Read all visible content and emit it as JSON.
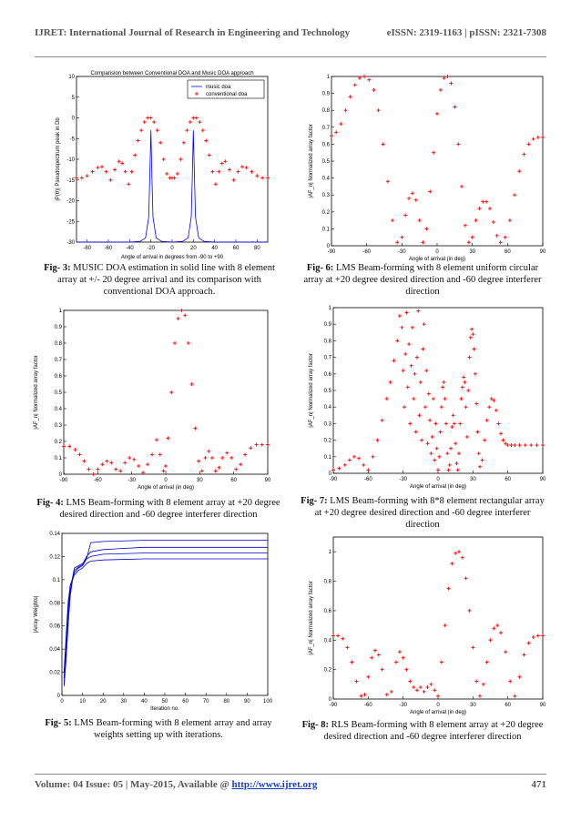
{
  "header": {
    "journal": "IJRET: International Journal of Research in Engineering and Technology",
    "issn": "eISSN: 2319-1163 | pISSN: 2321-7308"
  },
  "footer": {
    "volume_prefix": "Volume: 04 Issue: 05 | May-2015, Available @ ",
    "url": "http://www.ijret.org",
    "page": "471"
  },
  "captions": {
    "fig3": {
      "label": "Fig- 3:",
      "text": " MUSIC DOA estimation in solid line with 8 element array at +/- 20 degree arrival and its comparison with conventional DOA approach."
    },
    "fig4": {
      "label": "Fig- 4:",
      "text": " LMS Beam-forming with 8 element array at +20 degree desired direction and -60 degree interferer direction"
    },
    "fig5": {
      "label": "Fig- 5:",
      "text": " LMS Beam-forming with 8 element array and array weights setting up with iterations."
    },
    "fig6": {
      "label": "Fig- 6:",
      "text": " LMS Beam-forming with 8 element uniform circular array at +20 degree desired direction and -60 degree interferer direction"
    },
    "fig7": {
      "label": "Fig- 7:",
      "text": " LMS Beam-forming with 8*8 element rectangular array at +20 degree desired direction and -60 degree interferer direction"
    },
    "fig8": {
      "label": "Fig- 8:",
      "text": " RLS Beam-forming with 8 element array at +20 degree desired direction and -60 degree interferer direction"
    }
  },
  "chart_data": [
    {
      "id": "fig3",
      "type": "line",
      "title": "Comparision between Conventional DOA and Music DOA approach",
      "xlabel": "Angle of arrival in degrees from -90 to +90",
      "ylabel": "|P(θ)| Pseudospectrum peak in Db",
      "xlim": [
        -90,
        90
      ],
      "ylim": [
        -30,
        10
      ],
      "xticks": [
        -80,
        -60,
        -40,
        -20,
        0,
        20,
        40,
        60,
        80
      ],
      "yticks": [
        -30,
        -25,
        -20,
        -15,
        -10,
        -5,
        0,
        5,
        10
      ],
      "legend": [
        "music doa",
        "conventional doa"
      ],
      "legend_position": "top-right",
      "series": [
        {
          "name": "music doa",
          "style": "line",
          "color": "#0000ff",
          "x": [
            -90,
            -60,
            -40,
            -30,
            -25,
            -22,
            -21,
            -20,
            -19,
            -18,
            -15,
            -10,
            0,
            10,
            15,
            18,
            19,
            20,
            21,
            22,
            25,
            30,
            40,
            60,
            90
          ],
          "y": [
            -30,
            -30,
            -30,
            -29.8,
            -29,
            -24,
            -14,
            -3,
            -14,
            -24,
            -29,
            -29.8,
            -30,
            -29.8,
            -29,
            -24,
            -14,
            -3,
            -14,
            -24,
            -29,
            -29.8,
            -30,
            -30,
            -30
          ]
        },
        {
          "name": "conventional doa",
          "style": "markers",
          "color": "#ff0000",
          "x": [
            -90,
            -85,
            -80,
            -75,
            -70,
            -66,
            -62,
            -58,
            -54,
            -50,
            -47,
            -44,
            -41,
            -38,
            -35,
            -32,
            -29,
            -26,
            -23,
            -20,
            -17,
            -14,
            -11,
            -8,
            -5,
            -2,
            0,
            2,
            5,
            8,
            11,
            14,
            17,
            20,
            23,
            26,
            29,
            32,
            35,
            38,
            41,
            44,
            47,
            50,
            54,
            58,
            62,
            66,
            70,
            75,
            80,
            85,
            90
          ],
          "y": [
            -14.5,
            -14.5,
            -14,
            -13,
            -12,
            -11.8,
            -13,
            -15,
            -12.5,
            -10.5,
            -11,
            -13,
            -16,
            -13,
            -9,
            -5.5,
            -3,
            -1,
            0,
            0,
            -1,
            -3,
            -6,
            -10,
            -13.5,
            -14.5,
            -14.5,
            -14.5,
            -13.5,
            -10,
            -6,
            -3,
            -1,
            0,
            0,
            -1,
            -3,
            -5.5,
            -9,
            -13,
            -16,
            -13,
            -11,
            -10.5,
            -12.5,
            -15,
            -13,
            -11.8,
            -12,
            -13,
            -14,
            -14.5,
            -14.5
          ]
        }
      ]
    },
    {
      "id": "fig4",
      "type": "scatter",
      "xlabel": "Angle of arrival  (in deg)",
      "ylabel": "|AF_n| Normalized array factor",
      "xlim": [
        -90,
        90
      ],
      "ylim": [
        0,
        1
      ],
      "xticks": [
        -90,
        -60,
        -30,
        0,
        30,
        60,
        90
      ],
      "yticks": [
        0,
        0.1,
        0.2,
        0.3,
        0.4,
        0.5,
        0.6,
        0.7,
        0.8,
        0.9,
        1
      ],
      "series": [
        {
          "name": "",
          "color": "#ff0000",
          "x": [
            -90,
            -85,
            -80,
            -76,
            -72,
            -68,
            -64,
            -60,
            -56,
            -52,
            -48,
            -44,
            -40,
            -36,
            -32,
            -28,
            -24,
            -20,
            -16,
            -12,
            -8,
            -5,
            -2,
            0,
            2,
            5,
            8,
            11,
            14,
            17,
            20,
            23,
            26,
            29,
            32,
            35,
            38,
            41,
            44,
            47,
            50,
            54,
            58,
            62,
            66,
            70,
            75,
            80,
            85,
            90
          ],
          "y": [
            0.17,
            0.17,
            0.15,
            0.12,
            0.08,
            0.03,
            0,
            0.03,
            0.06,
            0.08,
            0.07,
            0.03,
            0.02,
            0.07,
            0.1,
            0.09,
            0.05,
            0.01,
            0.06,
            0.12,
            0.21,
            0.12,
            0.02,
            0.05,
            0.22,
            0.5,
            0.8,
            0.95,
            1.0,
            0.97,
            0.8,
            0.55,
            0.28,
            0.08,
            0.02,
            0.1,
            0.14,
            0.1,
            0.02,
            0.04,
            0.1,
            0.13,
            0.1,
            0.03,
            0.06,
            0.12,
            0.16,
            0.18,
            0.18,
            0.18
          ]
        }
      ]
    },
    {
      "id": "fig5",
      "type": "line",
      "xlabel": "Iteration no.",
      "ylabel": "|Array Weights|",
      "xlim": [
        0,
        100
      ],
      "ylim": [
        0,
        0.14
      ],
      "xticks": [
        0,
        10,
        20,
        30,
        40,
        50,
        60,
        70,
        80,
        90,
        100
      ],
      "yticks": [
        0,
        0.02,
        0.04,
        0.06,
        0.08,
        0.1,
        0.12,
        0.14
      ],
      "series": [
        {
          "name": "",
          "color": "#0000cc",
          "x": [
            1,
            2,
            3,
            4,
            5,
            6,
            8,
            10,
            12,
            14,
            20,
            40,
            70,
            100
          ],
          "y": [
            0.01,
            0.04,
            0.07,
            0.09,
            0.1,
            0.11,
            0.112,
            0.114,
            0.118,
            0.132,
            0.133,
            0.134,
            0.134,
            0.134
          ]
        },
        {
          "name": "",
          "color": "#0000cc",
          "x": [
            1,
            2,
            3,
            4,
            5,
            6,
            8,
            10,
            12,
            14,
            20,
            40,
            70,
            100
          ],
          "y": [
            0.02,
            0.05,
            0.08,
            0.095,
            0.1,
            0.108,
            0.111,
            0.113,
            0.12,
            0.124,
            0.126,
            0.128,
            0.128,
            0.128
          ]
        },
        {
          "name": "",
          "color": "#0000cc",
          "x": [
            1,
            2,
            3,
            4,
            5,
            6,
            8,
            10,
            12,
            14,
            20,
            40,
            70,
            100
          ],
          "y": [
            0.008,
            0.03,
            0.06,
            0.085,
            0.098,
            0.106,
            0.11,
            0.112,
            0.118,
            0.12,
            0.122,
            0.123,
            0.123,
            0.123
          ]
        },
        {
          "name": "",
          "color": "#0000cc",
          "x": [
            1,
            2,
            3,
            4,
            5,
            6,
            8,
            10,
            12,
            14,
            20,
            40,
            70,
            100
          ],
          "y": [
            0.015,
            0.045,
            0.075,
            0.09,
            0.1,
            0.104,
            0.108,
            0.11,
            0.114,
            0.116,
            0.117,
            0.118,
            0.118,
            0.118
          ]
        }
      ]
    },
    {
      "id": "fig6",
      "type": "scatter",
      "xlabel": "Angle of arrival  (in deg)",
      "ylabel": "|AF_n| Normalized array factor",
      "xlim": [
        -90,
        90
      ],
      "ylim": [
        0,
        1
      ],
      "xticks": [
        -90,
        -60,
        -30,
        0,
        30,
        60,
        90
      ],
      "yticks": [
        0,
        0.1,
        0.2,
        0.3,
        0.4,
        0.5,
        0.6,
        0.7,
        0.8,
        0.9,
        1
      ],
      "series": [
        {
          "name": "",
          "color": "#ff0000",
          "x": [
            -90,
            -86,
            -82,
            -78,
            -74,
            -70,
            -66,
            -62,
            -58,
            -54,
            -50,
            -46,
            -42,
            -38,
            -34,
            -30,
            -27,
            -24,
            -21,
            -18,
            -15,
            -12,
            -9,
            -6,
            -3,
            0,
            3,
            6,
            9,
            12,
            15,
            18,
            21,
            24,
            27,
            30,
            33,
            36,
            39,
            42,
            45,
            48,
            51,
            54,
            58,
            62,
            66,
            70,
            74,
            78,
            82,
            86,
            90
          ],
          "y": [
            0.65,
            0.67,
            0.72,
            0.8,
            0.88,
            0.95,
            0.99,
            1.0,
            0.98,
            0.92,
            0.8,
            0.6,
            0.38,
            0.15,
            0.02,
            0.05,
            0.18,
            0.28,
            0.31,
            0.27,
            0.15,
            0.02,
            0.1,
            0.32,
            0.55,
            0.78,
            0.92,
            0.99,
            1.0,
            0.96,
            0.82,
            0.6,
            0.35,
            0.12,
            0.02,
            0.05,
            0.15,
            0.22,
            0.26,
            0.26,
            0.22,
            0.14,
            0.06,
            0.02,
            0.05,
            0.15,
            0.3,
            0.44,
            0.54,
            0.6,
            0.63,
            0.64,
            0.64
          ]
        }
      ]
    },
    {
      "id": "fig7",
      "type": "scatter",
      "xlabel": "Angle of arrival  (in deg)",
      "ylabel": "|AF_n| Normalized array factor",
      "xlim": [
        -90,
        90
      ],
      "ylim": [
        0,
        1
      ],
      "xticks": [
        -90,
        -60,
        -30,
        0,
        30,
        60,
        90
      ],
      "yticks": [
        0,
        0.1,
        0.2,
        0.3,
        0.4,
        0.5,
        0.6,
        0.7,
        0.8,
        0.9,
        1
      ],
      "series": [
        {
          "name": "",
          "color": "#ff0000",
          "x": [
            -90,
            -85,
            -80,
            -76,
            -72,
            -68,
            -64,
            -60,
            -56,
            -52,
            -48,
            -44,
            -41,
            -38,
            -35,
            -33,
            -31,
            -30,
            -29,
            -28,
            -27,
            -26,
            -25,
            -24,
            -23,
            -22,
            -21,
            -20,
            -19,
            -18,
            -17,
            -16,
            -15,
            -14,
            -13,
            -12,
            -11,
            -10,
            -9,
            -8,
            -7,
            -6,
            -5,
            -4,
            -3,
            -2,
            -1,
            0,
            1,
            2,
            3,
            4,
            5,
            6,
            7,
            8,
            9,
            10,
            11,
            12,
            13,
            14,
            15,
            16,
            17,
            18,
            19,
            20,
            21,
            22,
            23,
            24,
            25,
            26,
            27,
            28,
            29,
            30,
            31,
            32,
            33,
            34,
            35,
            36,
            38,
            40,
            42,
            44,
            46,
            48,
            50,
            52,
            54,
            56,
            58,
            60,
            63,
            66,
            70,
            75,
            80,
            85,
            90
          ],
          "y": [
            0.02,
            0.03,
            0.05,
            0.08,
            0.1,
            0.09,
            0.05,
            0.02,
            0.1,
            0.2,
            0.32,
            0.45,
            0.55,
            0.68,
            0.8,
            0.95,
            0.88,
            0.62,
            0.4,
            0.72,
            0.97,
            0.52,
            0.78,
            0.3,
            0.65,
            0.88,
            0.45,
            0.6,
            0.25,
            0.7,
            0.98,
            0.35,
            0.55,
            0.2,
            0.75,
            0.9,
            0.4,
            0.62,
            0.18,
            0.48,
            0.32,
            0.12,
            0.22,
            0.45,
            0.08,
            0.3,
            0.15,
            0.02,
            0.1,
            0.25,
            0.4,
            0.52,
            0.55,
            0.45,
            0.3,
            0.12,
            0.02,
            0.05,
            0.15,
            0.28,
            0.35,
            0.3,
            0.18,
            0.06,
            0.02,
            0.12,
            0.3,
            0.45,
            0.52,
            0.58,
            0.55,
            0.4,
            0.22,
            0.5,
            0.7,
            0.82,
            0.87,
            0.84,
            0.75,
            0.6,
            0.42,
            0.25,
            0.12,
            0.04,
            0.08,
            0.2,
            0.32,
            0.4,
            0.45,
            0.44,
            0.38,
            0.3,
            0.24,
            0.2,
            0.18,
            0.17,
            0.17,
            0.17,
            0.17,
            0.17,
            0.17,
            0.17,
            0.17
          ]
        }
      ]
    },
    {
      "id": "fig8",
      "type": "scatter",
      "xlabel": "Angle of arrival  (in deg)",
      "ylabel": "|AF_n| Normalized array factor",
      "xlim": [
        -90,
        90
      ],
      "ylim": [
        0,
        1.1
      ],
      "xticks": [
        -90,
        -60,
        -30,
        0,
        30,
        60,
        90
      ],
      "yticks": [
        0,
        0.2,
        0.4,
        0.6,
        0.8,
        1
      ],
      "series": [
        {
          "name": "",
          "color": "#ff0000",
          "x": [
            -90,
            -86,
            -82,
            -78,
            -74,
            -70,
            -66,
            -63,
            -60,
            -57,
            -54,
            -51,
            -48,
            -44,
            -40,
            -36,
            -33,
            -30,
            -27,
            -24,
            -21,
            -18,
            -15,
            -12,
            -9,
            -6,
            -3,
            0,
            3,
            6,
            9,
            12,
            15,
            18,
            21,
            24,
            27,
            30,
            33,
            36,
            39,
            42,
            45,
            48,
            51,
            54,
            58,
            62,
            66,
            70,
            74,
            78,
            82,
            86,
            90
          ],
          "y": [
            0.43,
            0.43,
            0.41,
            0.35,
            0.25,
            0.12,
            0.02,
            0.03,
            0.15,
            0.28,
            0.33,
            0.3,
            0.2,
            0.03,
            0.05,
            0.25,
            0.32,
            0.28,
            0.2,
            0.12,
            0.08,
            0.06,
            0.08,
            0.05,
            0.08,
            0.1,
            0.06,
            0.02,
            0.25,
            0.5,
            0.75,
            0.92,
            0.99,
            1.0,
            0.96,
            0.82,
            0.6,
            0.35,
            0.12,
            0.02,
            0.1,
            0.25,
            0.4,
            0.48,
            0.5,
            0.45,
            0.32,
            0.12,
            0.02,
            0.15,
            0.3,
            0.38,
            0.42,
            0.43,
            0.43
          ]
        }
      ]
    }
  ]
}
